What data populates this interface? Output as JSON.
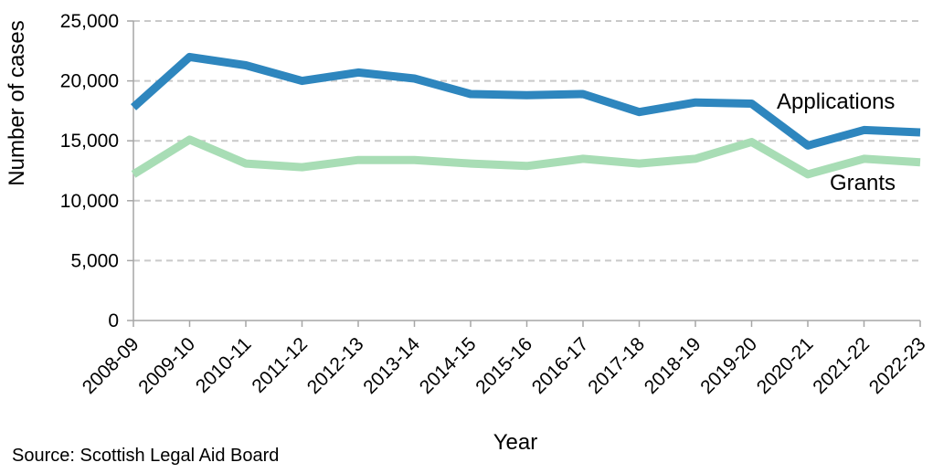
{
  "chart": {
    "y_axis_title": "Number of cases",
    "x_axis_title": "Year",
    "source_note": "Source: Scottish Legal Aid Board",
    "applications_label": "Applications",
    "grants_label": "Grants"
  },
  "chart_data": {
    "type": "line",
    "title": "",
    "xlabel": "Year",
    "ylabel": "Number of cases",
    "categories": [
      "2008-09",
      "2009-10",
      "2010-11",
      "2011-12",
      "2012-13",
      "2013-14",
      "2014-15",
      "2015-16",
      "2016-17",
      "2017-18",
      "2018-19",
      "2019-20",
      "2020-21",
      "2021-22",
      "2022-23"
    ],
    "series": [
      {
        "name": "Applications",
        "color": "#2E86BE",
        "values": [
          17800,
          22000,
          21300,
          20000,
          20700,
          20200,
          18900,
          18800,
          18900,
          17400,
          18200,
          18100,
          14600,
          15900,
          15700
        ]
      },
      {
        "name": "Grants",
        "color": "#A8DDB5",
        "values": [
          12200,
          15100,
          13100,
          12800,
          13400,
          13400,
          13100,
          12900,
          13500,
          13100,
          13500,
          14900,
          12200,
          13500,
          13200
        ]
      }
    ],
    "ylim": [
      0,
      25000
    ],
    "yticks": [
      0,
      5000,
      10000,
      15000,
      20000,
      25000
    ],
    "ytick_labels": [
      "0",
      "5,000",
      "10,000",
      "15,000",
      "20,000",
      "25,000"
    ],
    "grid": "horizontal-dashed",
    "legend": "inline-series-labels",
    "source": "Source: Scottish Legal Aid Board"
  },
  "colors": {
    "applications_line": "#2E86BE",
    "grants_line": "#A8DDB5",
    "gridline": "#C9C9C9",
    "axis": "#A6A6A6",
    "text": "#000000"
  }
}
